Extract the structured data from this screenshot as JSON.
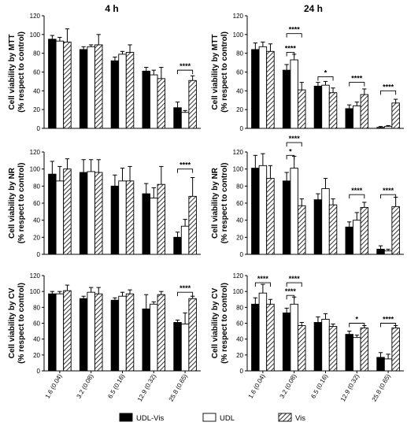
{
  "column_titles": [
    "4 h",
    "24 h"
  ],
  "legend": [
    {
      "name": "UDL-Vis",
      "style": "solid"
    },
    {
      "name": "UDL",
      "style": "open"
    },
    {
      "name": "Vis",
      "style": "hatched"
    }
  ],
  "colors": {
    "solid": "#000000",
    "open": "#ffffff",
    "stroke": "#000000"
  },
  "chart_data": [
    {
      "type": "bar",
      "row": 0,
      "col": 0,
      "ylabel": [
        "Cell viability by MTT",
        "(% respect to control)"
      ],
      "ylim": [
        0,
        120
      ],
      "yticks": [
        0,
        20,
        40,
        60,
        80,
        100,
        120
      ],
      "categories": [
        "1.6 (0.04)",
        "3.2 (0.08)",
        "6.5 (0.16)",
        "12.9 (0.32)",
        "25.8 (0.65)"
      ],
      "series": [
        {
          "name": "UDL-Vis",
          "values": [
            95,
            84,
            72,
            61,
            22
          ],
          "errors": [
            4,
            3,
            4,
            4,
            6
          ]
        },
        {
          "name": "UDL",
          "values": [
            93,
            87,
            79,
            57,
            17
          ],
          "errors": [
            4,
            2,
            3,
            5,
            2
          ]
        },
        {
          "name": "Vis",
          "values": [
            92,
            89,
            81,
            53,
            51
          ],
          "errors": [
            14,
            11,
            8,
            12,
            5
          ]
        }
      ],
      "significance": [
        {
          "category": 4,
          "from": 0,
          "to": 2,
          "label": "****",
          "y": 62
        }
      ]
    },
    {
      "type": "bar",
      "row": 0,
      "col": 1,
      "ylabel": [
        "Cell viability by MTT",
        "(% respect to control)"
      ],
      "ylim": [
        0,
        120
      ],
      "yticks": [
        0,
        20,
        40,
        60,
        80,
        100,
        120
      ],
      "categories": [
        "1.6 (0.04)",
        "3.2 (0.08)",
        "6.5 (0.16)",
        "12.9 (0.32)",
        "25.8 (0.65)"
      ],
      "series": [
        {
          "name": "UDL-Vis",
          "values": [
            84,
            62,
            45,
            21,
            1
          ],
          "errors": [
            7,
            6,
            4,
            4,
            1
          ]
        },
        {
          "name": "UDL",
          "values": [
            87,
            73,
            46,
            24,
            2
          ],
          "errors": [
            5,
            6,
            4,
            4,
            1
          ]
        },
        {
          "name": "Vis",
          "values": [
            82,
            41,
            38,
            36,
            27
          ],
          "errors": [
            8,
            8,
            5,
            6,
            4
          ]
        }
      ],
      "significance": [
        {
          "category": 1,
          "from": 0,
          "to": 1,
          "label": "****",
          "y": 81
        },
        {
          "category": 1,
          "from": 0,
          "to": 2,
          "label": "****",
          "y": 101
        },
        {
          "category": 2,
          "from": 0,
          "to": 2,
          "label": "*",
          "y": 55
        },
        {
          "category": 3,
          "from": 0,
          "to": 2,
          "label": "****",
          "y": 49
        },
        {
          "category": 4,
          "from": 0,
          "to": 2,
          "label": "****",
          "y": 40
        }
      ]
    },
    {
      "type": "bar",
      "row": 1,
      "col": 0,
      "ylabel": [
        "Cell viability by NR",
        "(% respect to control)"
      ],
      "ylim": [
        0,
        120
      ],
      "yticks": [
        0,
        20,
        40,
        60,
        80,
        100,
        120
      ],
      "categories": [
        "1.6 (0.04)",
        "3.2 (0.08)",
        "6.5 (0.16)",
        "12.9 (0.32)",
        "25.8 (0.65)"
      ],
      "series": [
        {
          "name": "UDL-Vis",
          "values": [
            94,
            96,
            80,
            71,
            20
          ],
          "errors": [
            15,
            15,
            13,
            12,
            6
          ]
        },
        {
          "name": "UDL",
          "values": [
            86,
            97,
            86,
            66,
            33
          ],
          "errors": [
            17,
            14,
            15,
            12,
            8
          ]
        },
        {
          "name": "Vis",
          "values": [
            100,
            96,
            86,
            82,
            68
          ],
          "errors": [
            12,
            15,
            17,
            21,
            22
          ]
        }
      ],
      "significance": [
        {
          "category": 4,
          "from": 0,
          "to": 2,
          "label": "****",
          "y": 100
        }
      ]
    },
    {
      "type": "bar",
      "row": 1,
      "col": 1,
      "ylabel": [
        "Cell viability by NR",
        "(% respect to control)"
      ],
      "ylim": [
        0,
        120
      ],
      "yticks": [
        0,
        20,
        40,
        60,
        80,
        100,
        120
      ],
      "categories": [
        "1.6 (0.04)",
        "3.2 (0.08)",
        "6.5 (0.16)",
        "12.9 (0.32)",
        "25.8 (0.65)"
      ],
      "series": [
        {
          "name": "UDL-Vis",
          "values": [
            101,
            86,
            64,
            32,
            6
          ],
          "errors": [
            15,
            10,
            7,
            6,
            4
          ]
        },
        {
          "name": "UDL",
          "values": [
            104,
            101,
            77,
            40,
            4
          ],
          "errors": [
            14,
            14,
            12,
            9,
            2
          ]
        },
        {
          "name": "Vis",
          "values": [
            89,
            57,
            58,
            55,
            56
          ],
          "errors": [
            15,
            8,
            7,
            6,
            11
          ]
        }
      ],
      "significance": [
        {
          "category": 1,
          "from": 0,
          "to": 1,
          "label": "*",
          "y": 116
        },
        {
          "category": 1,
          "from": 0,
          "to": 2,
          "label": "****",
          "y": 131
        },
        {
          "category": 3,
          "from": 0,
          "to": 2,
          "label": "****",
          "y": 70
        },
        {
          "category": 4,
          "from": 0,
          "to": 2,
          "label": "****",
          "y": 70
        }
      ]
    },
    {
      "type": "bar",
      "row": 2,
      "col": 0,
      "ylabel": [
        "Cell viability by CV",
        "(% respect to control)"
      ],
      "ylim": [
        0,
        120
      ],
      "yticks": [
        0,
        20,
        40,
        60,
        80,
        100,
        120
      ],
      "categories": [
        "1.6 (0.04)",
        "3.2 (0.08)",
        "6.5 (0.16)",
        "12.9 (0.32)",
        "25.8 (0.65)"
      ],
      "series": [
        {
          "name": "UDL-Vis",
          "values": [
            97,
            91,
            89,
            78,
            61
          ],
          "errors": [
            3,
            3,
            3,
            18,
            3
          ]
        },
        {
          "name": "UDL",
          "values": [
            97,
            99,
            94,
            84,
            59
          ],
          "errors": [
            3,
            6,
            5,
            3,
            14
          ]
        },
        {
          "name": "Vis",
          "values": [
            101,
            97,
            97,
            96,
            91
          ],
          "errors": [
            7,
            8,
            5,
            4,
            3
          ]
        }
      ],
      "significance": [
        {
          "category": 4,
          "from": 0,
          "to": 2,
          "label": "****",
          "y": 99
        }
      ]
    },
    {
      "type": "bar",
      "row": 2,
      "col": 1,
      "ylabel": [
        "Cell viability by CV",
        "(% respect to control)"
      ],
      "ylim": [
        0,
        120
      ],
      "yticks": [
        0,
        20,
        40,
        60,
        80,
        100,
        120
      ],
      "categories": [
        "1.6 (0.04)",
        "3.2 (0.08)",
        "6.5 (0.16)",
        "12.9 (0.32)",
        "25.8 (0.65)"
      ],
      "series": [
        {
          "name": "UDL-Vis",
          "values": [
            84,
            73,
            61,
            46,
            17
          ],
          "errors": [
            8,
            6,
            7,
            4,
            6
          ]
        },
        {
          "name": "UDL",
          "values": [
            98,
            84,
            65,
            42,
            15
          ],
          "errors": [
            11,
            9,
            7,
            3,
            6
          ]
        },
        {
          "name": "Vis",
          "values": [
            84,
            57,
            56,
            54,
            54
          ],
          "errors": [
            6,
            4,
            3,
            3,
            3
          ]
        }
      ],
      "significance": [
        {
          "category": 0,
          "from": 0,
          "to": 2,
          "label": "****",
          "y": 111
        },
        {
          "category": 1,
          "from": 0,
          "to": 1,
          "label": "****",
          "y": 95
        },
        {
          "category": 1,
          "from": 0,
          "to": 2,
          "label": "****",
          "y": 111
        },
        {
          "category": 3,
          "from": 0,
          "to": 2,
          "label": "*",
          "y": 60
        },
        {
          "category": 4,
          "from": 0,
          "to": 2,
          "label": "****",
          "y": 60
        }
      ]
    }
  ]
}
